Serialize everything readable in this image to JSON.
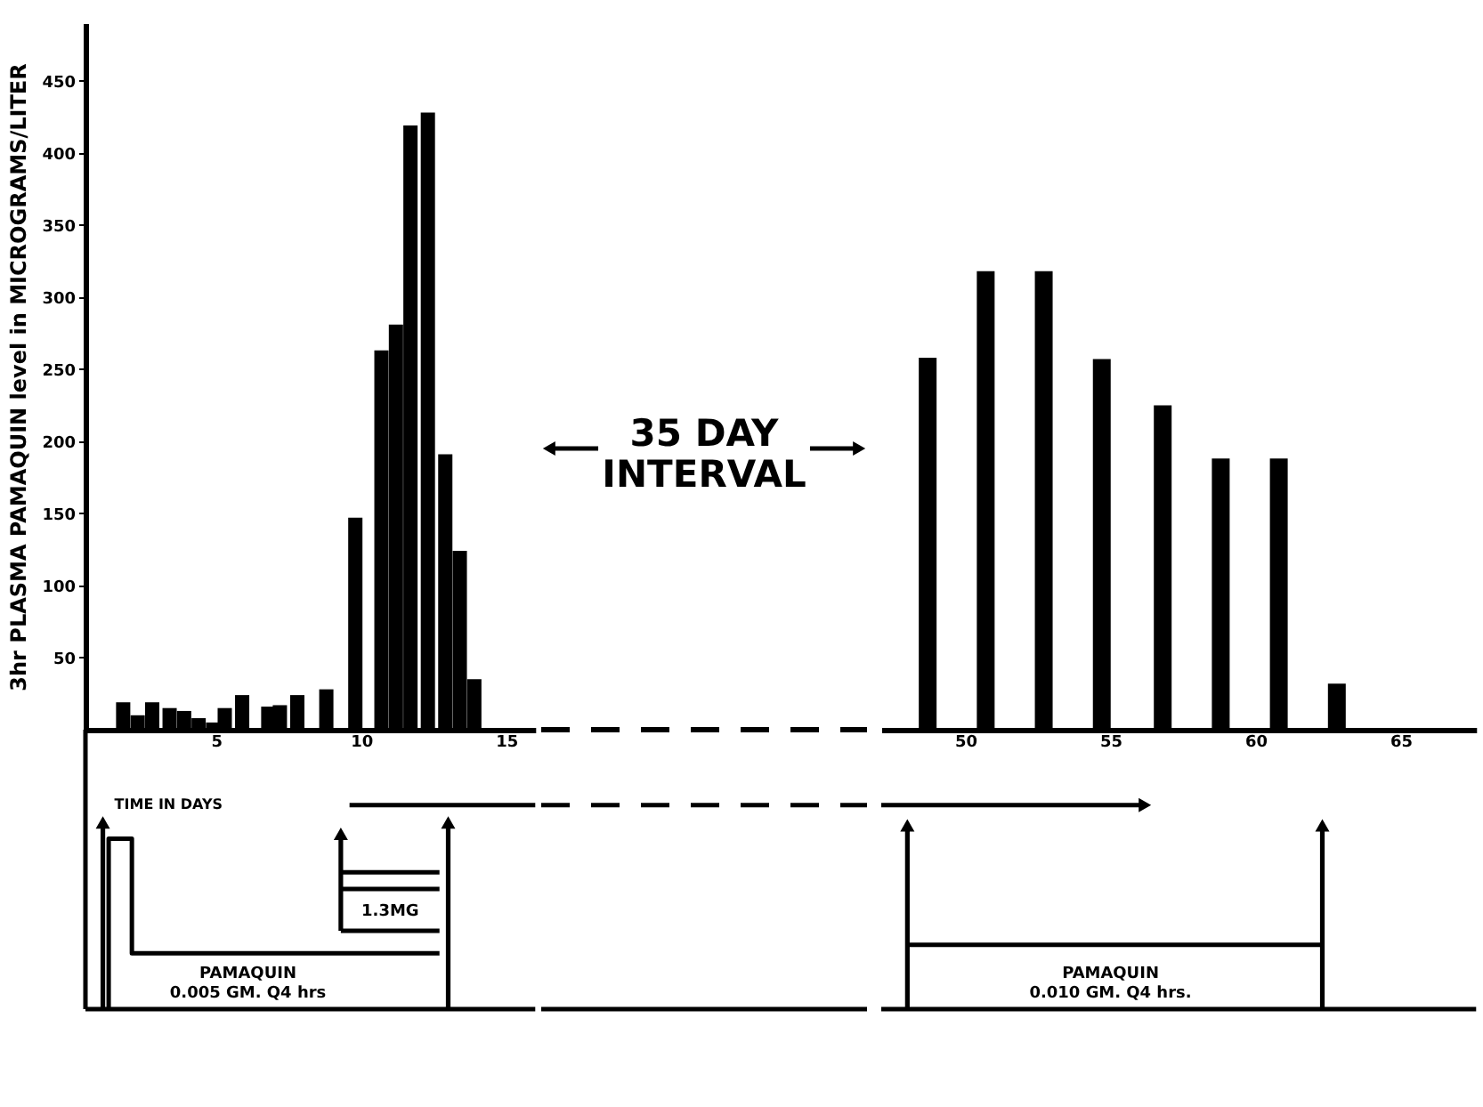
{
  "chart_data": [
    {
      "type": "bar",
      "xlabel": "TIME IN DAYS",
      "ylabel": "3hr PLASMA PAMAQUIN level in MICROGRAMS/LITER",
      "color": "#000000",
      "x": [
        1.8,
        2.3,
        2.8,
        3.4,
        3.9,
        4.4,
        4.9,
        5.3,
        5.9,
        6.8,
        7.2,
        7.8,
        8.8,
        9.8,
        10.7,
        11.2,
        11.7,
        12.3,
        12.9,
        13.4,
        13.9
      ],
      "values": [
        19,
        10,
        19,
        15,
        13,
        8,
        5,
        15,
        24,
        16,
        17,
        24,
        28,
        147,
        263,
        281,
        419,
        428,
        191,
        124,
        35
      ],
      "xlim": [
        0.5,
        16
      ],
      "ylim": [
        0,
        490
      ],
      "xticks": [
        5,
        10,
        15
      ],
      "yticks": [
        50,
        100,
        150,
        200,
        250,
        300,
        350,
        400,
        450
      ],
      "annotations": [
        "35 DAY\nINTERVAL",
        "PAMAQUIN\n0.005 GM. Q4 hrs",
        "1.3MG"
      ]
    },
    {
      "type": "bar",
      "color": "#000000",
      "x": [
        48.7,
        50.7,
        52.7,
        54.7,
        56.8,
        58.8,
        60.8,
        62.8
      ],
      "values": [
        258,
        318,
        318,
        257,
        225,
        188,
        188,
        32
      ],
      "xlim": [
        47.1,
        67.6
      ],
      "ylim": [
        0,
        450
      ],
      "xticks": [
        50,
        55,
        60,
        65
      ],
      "yticks": [
        50,
        100,
        150,
        200,
        250,
        300,
        350,
        400,
        450
      ],
      "tick_labels": "x",
      "annotations": [
        "PAMAQUIN\n0.010 GM. Q4 hrs."
      ]
    }
  ]
}
